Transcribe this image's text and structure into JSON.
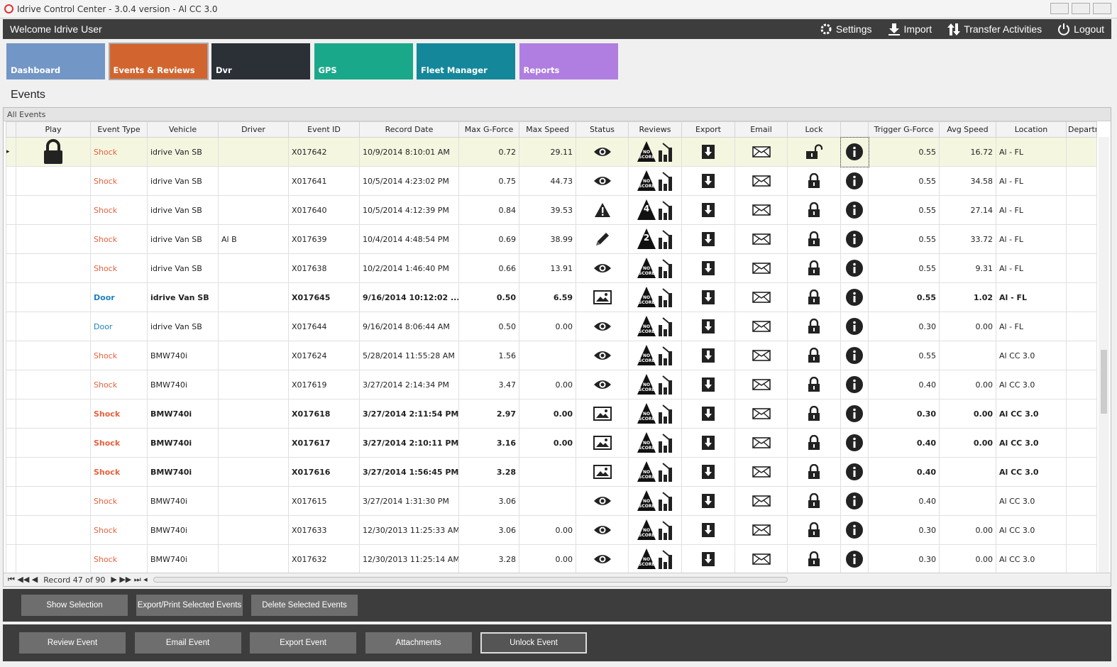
{
  "window": {
    "title": "Idrive Control Center - 3.0.4 version - Al CC 3.0"
  },
  "header": {
    "welcome": "Welcome Idrive User",
    "menu": [
      "Settings",
      "Import",
      "Transfer Activities",
      "Logout"
    ]
  },
  "tabs": [
    "Dashboard",
    "Events & Reviews",
    "Dvr",
    "GPS",
    "Fleet Manager",
    "Reports"
  ],
  "page_title": "Events",
  "grid": {
    "group": "All Events",
    "columns": [
      "Play",
      "Event Type",
      "Vehicle",
      "Driver",
      "Event ID",
      "Record Date",
      "Max G-Force",
      "Max Speed",
      "Status",
      "Reviews",
      "Export",
      "Email",
      "Lock",
      null,
      "Trigger G-Force",
      "Avg Speed",
      "Location",
      "Departm"
    ],
    "rows": [
      {
        "event_type": "Shock",
        "color": "#e8603c",
        "vehicle": "idrive Van SB",
        "driver": null,
        "event_id": "X017642",
        "record_date": "10/9/2014 8:10:01 AM",
        "max_g_force": "0.72",
        "max_speed": "29.11",
        "status": "eye",
        "review": "NO SCORE",
        "trigger_g_force": "0.55",
        "avg_speed": "16.72",
        "location": "Al - FL",
        "bold": false,
        "locked": false,
        "playable": false,
        "selected": true
      },
      {
        "event_type": "Shock",
        "color": "#e8603c",
        "vehicle": "idrive Van SB",
        "driver": null,
        "event_id": "X017641",
        "record_date": "10/5/2014 4:23:02 PM",
        "max_g_force": "0.75",
        "max_speed": "44.73",
        "status": "eye",
        "review": "NO SCORE",
        "trigger_g_force": "0.55",
        "avg_speed": "34.58",
        "location": "Al - FL",
        "bold": false,
        "locked": true,
        "playable": true,
        "selected": false
      },
      {
        "event_type": "Shock",
        "color": "#e8603c",
        "vehicle": "idrive Van SB",
        "driver": null,
        "event_id": "X017640",
        "record_date": "10/5/2014 4:12:39 PM",
        "max_g_force": "0.84",
        "max_speed": "39.53",
        "status": "warning",
        "review": "4",
        "trigger_g_force": "0.55",
        "avg_speed": "27.14",
        "location": "Al - FL",
        "bold": false,
        "locked": true,
        "playable": true,
        "selected": false
      },
      {
        "event_type": "Shock",
        "color": "#e8603c",
        "vehicle": "idrive Van SB",
        "driver": "Al B",
        "event_id": "X017639",
        "record_date": "10/4/2014 4:48:54 PM",
        "max_g_force": "0.69",
        "max_speed": "38.99",
        "status": "pencil",
        "review": "2",
        "trigger_g_force": "0.55",
        "avg_speed": "33.72",
        "location": "Al - FL",
        "bold": false,
        "locked": true,
        "playable": true,
        "selected": false
      },
      {
        "event_type": "Shock",
        "color": "#e8603c",
        "vehicle": "idrive Van SB",
        "driver": null,
        "event_id": "X017638",
        "record_date": "10/2/2014 1:46:40 PM",
        "max_g_force": "0.66",
        "max_speed": "13.91",
        "status": "eye",
        "review": "NO SCORE",
        "trigger_g_force": "0.55",
        "avg_speed": "9.31",
        "location": "Al - FL",
        "bold": false,
        "locked": true,
        "playable": true,
        "selected": false
      },
      {
        "event_type": "Door",
        "color": "#1e7fc0",
        "vehicle": "idrive Van SB",
        "driver": null,
        "event_id": "X017645",
        "record_date": "9/16/2014 10:12:02 ...",
        "max_g_force": "0.50",
        "max_speed": "6.59",
        "status": "image",
        "review": "NO SCORE",
        "trigger_g_force": "0.55",
        "avg_speed": "1.02",
        "location": "Al - FL",
        "bold": true,
        "locked": true,
        "playable": true,
        "selected": false
      },
      {
        "event_type": "Door",
        "color": "#1e7fc0",
        "vehicle": "idrive Van SB",
        "driver": null,
        "event_id": "X017644",
        "record_date": "9/16/2014 8:06:44 AM",
        "max_g_force": "0.50",
        "max_speed": "0.00",
        "status": "eye",
        "review": "NO SCORE",
        "trigger_g_force": "0.30",
        "avg_speed": "0.00",
        "location": "Al - FL",
        "bold": false,
        "locked": true,
        "playable": true,
        "selected": false
      },
      {
        "event_type": "Shock",
        "color": "#e8603c",
        "vehicle": "BMW740i",
        "driver": null,
        "event_id": "X017624",
        "record_date": "5/28/2014 11:55:28 AM",
        "max_g_force": "1.56",
        "max_speed": null,
        "status": "eye",
        "review": "NO SCORE",
        "trigger_g_force": "0.55",
        "avg_speed": null,
        "location": "Al CC 3.0",
        "bold": false,
        "locked": true,
        "playable": true,
        "selected": false
      },
      {
        "event_type": "Shock",
        "color": "#e8603c",
        "vehicle": "BMW740i",
        "driver": null,
        "event_id": "X017619",
        "record_date": "3/27/2014 2:14:34 PM",
        "max_g_force": "3.47",
        "max_speed": "0.00",
        "status": "eye",
        "review": "NO SCORE",
        "trigger_g_force": "0.40",
        "avg_speed": "0.00",
        "location": "Al CC 3.0",
        "bold": false,
        "locked": true,
        "playable": true,
        "selected": false
      },
      {
        "event_type": "Shock",
        "color": "#e8603c",
        "vehicle": "BMW740i",
        "driver": null,
        "event_id": "X017618",
        "record_date": "3/27/2014 2:11:54 PM",
        "max_g_force": "2.97",
        "max_speed": "0.00",
        "status": "image",
        "review": "NO SCORE",
        "trigger_g_force": "0.30",
        "avg_speed": "0.00",
        "location": "Al CC 3.0",
        "bold": true,
        "locked": true,
        "playable": true,
        "selected": false
      },
      {
        "event_type": "Shock",
        "color": "#e8603c",
        "vehicle": "BMW740i",
        "driver": null,
        "event_id": "X017617",
        "record_date": "3/27/2014 2:10:11 PM",
        "max_g_force": "3.16",
        "max_speed": "0.00",
        "status": "image",
        "review": "NO SCORE",
        "trigger_g_force": "0.40",
        "avg_speed": "0.00",
        "location": "Al CC 3.0",
        "bold": true,
        "locked": true,
        "playable": true,
        "selected": false
      },
      {
        "event_type": "Shock",
        "color": "#e8603c",
        "vehicle": "BMW740i",
        "driver": null,
        "event_id": "X017616",
        "record_date": "3/27/2014 1:56:45 PM",
        "max_g_force": "3.28",
        "max_speed": null,
        "status": "image",
        "review": "NO SCORE",
        "trigger_g_force": "0.40",
        "avg_speed": null,
        "location": "Al CC 3.0",
        "bold": true,
        "locked": true,
        "playable": true,
        "selected": false
      },
      {
        "event_type": "Shock",
        "color": "#e8603c",
        "vehicle": "BMW740i",
        "driver": null,
        "event_id": "X017615",
        "record_date": "3/27/2014 1:31:30 PM",
        "max_g_force": "3.06",
        "max_speed": null,
        "status": "eye",
        "review": "NO SCORE",
        "trigger_g_force": "0.40",
        "avg_speed": null,
        "location": "Al CC 3.0",
        "bold": false,
        "locked": true,
        "playable": true,
        "selected": false
      },
      {
        "event_type": "Shock",
        "color": "#e8603c",
        "vehicle": "BMW740i",
        "driver": null,
        "event_id": "X017633",
        "record_date": "12/30/2013 11:25:33 AM",
        "max_g_force": "3.06",
        "max_speed": "0.00",
        "status": "eye",
        "review": "NO SCORE",
        "trigger_g_force": "0.30",
        "avg_speed": "0.00",
        "location": "Al CC 3.0",
        "bold": false,
        "locked": true,
        "playable": true,
        "selected": false
      },
      {
        "event_type": "Shock",
        "color": "#e8603c",
        "vehicle": "BMW740i",
        "driver": null,
        "event_id": "X017632",
        "record_date": "12/30/2013 11:25:14 AM",
        "max_g_force": "3.28",
        "max_speed": "0.00",
        "status": "eye",
        "review": "NO SCORE",
        "trigger_g_force": "0.30",
        "avg_speed": "0.00",
        "location": "Al CC 3.0",
        "bold": false,
        "locked": true,
        "playable": true,
        "selected": false
      }
    ]
  },
  "pager": {
    "record": "Record 47 of 90"
  },
  "actions": {
    "selection": [
      "Show Selection",
      "Export/Print Selected Events",
      "Delete Selected  Events"
    ],
    "event": [
      "Review Event",
      "Email Event",
      "Export Event",
      "Attachments",
      "Unlock Event"
    ]
  }
}
